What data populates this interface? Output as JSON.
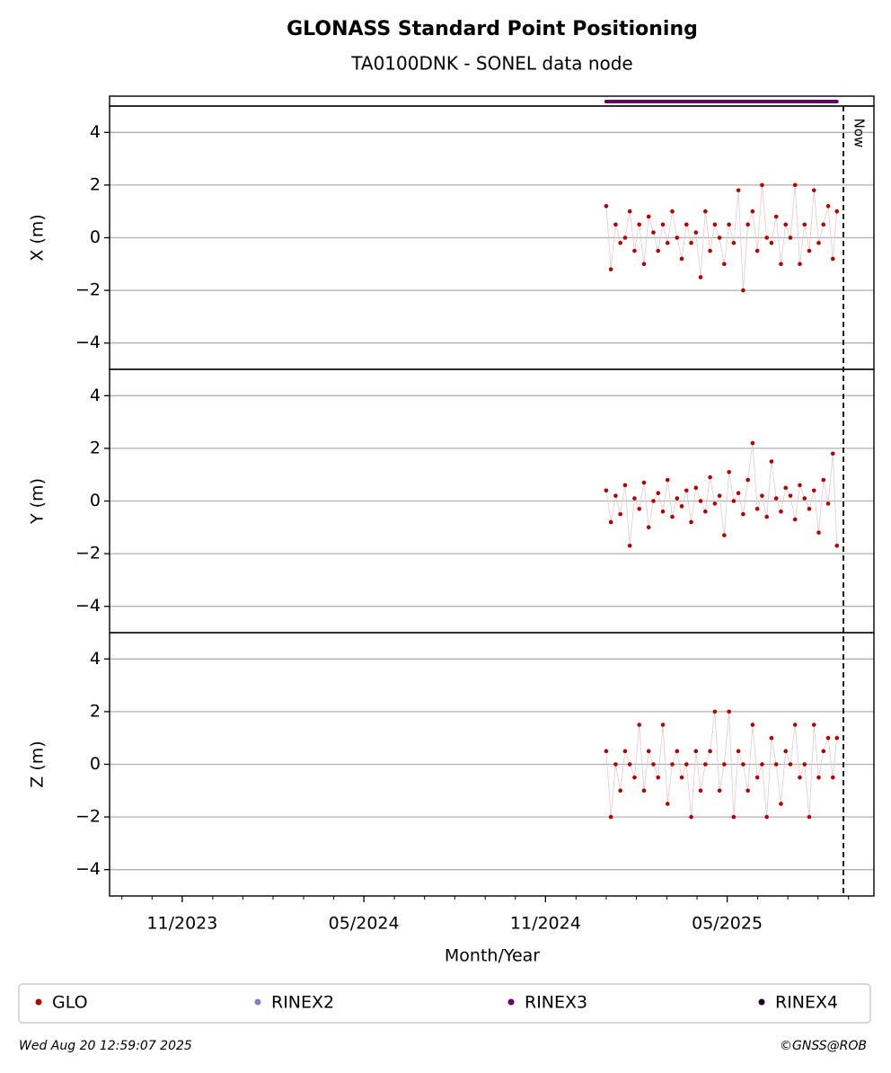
{
  "chart_data": {
    "type": "scatter",
    "title": "GLONASS Standard Point Positioning",
    "subtitle": "TA0100DNK - SONEL data node",
    "xlabel": "Month/Year",
    "xlim": [
      2023.633,
      2025.737
    ],
    "xticks": [
      {
        "value": 2023.833,
        "label": "11/2023"
      },
      {
        "value": 2024.333,
        "label": "05/2024"
      },
      {
        "value": 2024.833,
        "label": "11/2024"
      },
      {
        "value": 2025.333,
        "label": "05/2025"
      }
    ],
    "xminorticks": [
      2023.667,
      2023.75,
      2023.917,
      2024.0,
      2024.083,
      2024.167,
      2024.25,
      2024.417,
      2024.5,
      2024.583,
      2024.667,
      2024.75,
      2024.917,
      2025.0,
      2025.083,
      2025.167,
      2025.25,
      2025.417,
      2025.5,
      2025.583,
      2025.667
    ],
    "now": {
      "value": 2025.653,
      "label": "Now"
    },
    "grid": true,
    "x": [
      2025.0,
      2025.013,
      2025.026,
      2025.039,
      2025.052,
      2025.065,
      2025.078,
      2025.091,
      2025.104,
      2025.117,
      2025.13,
      2025.143,
      2025.156,
      2025.169,
      2025.182,
      2025.195,
      2025.208,
      2025.221,
      2025.234,
      2025.247,
      2025.26,
      2025.273,
      2025.286,
      2025.299,
      2025.312,
      2025.325,
      2025.338,
      2025.351,
      2025.364,
      2025.377,
      2025.39,
      2025.403,
      2025.416,
      2025.429,
      2025.442,
      2025.455,
      2025.468,
      2025.481,
      2025.494,
      2025.507,
      2025.52,
      2025.533,
      2025.546,
      2025.559,
      2025.572,
      2025.585,
      2025.598,
      2025.611,
      2025.624,
      2025.635
    ],
    "panels": [
      {
        "ylabel": "X (m)",
        "ylim": [
          -5,
          5
        ],
        "yticks": [
          {
            "value": -4,
            "label": "−4"
          },
          {
            "value": -2,
            "label": "−2"
          },
          0,
          2,
          4
        ],
        "values": [
          1.2,
          -1.2,
          0.5,
          -0.2,
          0,
          1,
          -0.5,
          0.5,
          -1.0,
          0.8,
          0.2,
          -0.5,
          0.5,
          -0.2,
          1,
          0,
          -0.8,
          0.5,
          -0.2,
          0.2,
          -1.5,
          1,
          -0.5,
          0.5,
          0,
          -1,
          0.5,
          -0.2,
          1.8,
          -2,
          0.5,
          1,
          -0.5,
          2,
          0,
          -0.2,
          0.8,
          -1,
          0.5,
          0,
          2,
          -1,
          0.5,
          -0.5,
          1.8,
          -0.2,
          0.5,
          1.2,
          -0.8,
          1
        ]
      },
      {
        "ylabel": "Y (m)",
        "ylim": [
          -5,
          5
        ],
        "yticks": [
          {
            "value": -4,
            "label": "−4"
          },
          {
            "value": -2,
            "label": "−2"
          },
          0,
          2,
          4
        ],
        "values": [
          0.4,
          -0.8,
          0.2,
          -0.5,
          0.6,
          -1.7,
          0.1,
          -0.3,
          0.7,
          -1.0,
          0,
          0.3,
          -0.4,
          0.8,
          -0.6,
          0.1,
          -0.2,
          0.4,
          -0.8,
          0.5,
          0,
          -0.4,
          0.9,
          -0.1,
          0.2,
          -1.3,
          1.1,
          0,
          0.3,
          -0.5,
          0.8,
          2.2,
          -0.3,
          0.2,
          -0.6,
          1.5,
          0.1,
          -0.4,
          0.5,
          0.2,
          -0.7,
          0.6,
          0.1,
          -0.3,
          0.4,
          -1.2,
          0.8,
          -0.1,
          1.8,
          -1.7
        ]
      },
      {
        "ylabel": "Z (m)",
        "ylim": [
          -5,
          5
        ],
        "yticks": [
          {
            "value": -4,
            "label": "−4"
          },
          {
            "value": -2,
            "label": "−2"
          },
          0,
          2,
          4
        ],
        "values": [
          0.5,
          -2,
          0,
          -1,
          0.5,
          0,
          -0.5,
          1.5,
          -1,
          0.5,
          0,
          -0.5,
          1.5,
          -1.5,
          0,
          0.5,
          -0.5,
          0,
          -2,
          0.5,
          -1,
          0,
          0.5,
          2,
          -1,
          0,
          2,
          -2,
          0.5,
          0,
          -1,
          1.5,
          -0.5,
          0,
          -2,
          1,
          0,
          -1.5,
          0.5,
          0,
          1.5,
          -0.5,
          0,
          -2,
          1.5,
          -0.5,
          0.5,
          1,
          -0.5,
          1
        ]
      }
    ],
    "legend_loc": "lower center",
    "legend": [
      {
        "name": "GLO",
        "color": "#b30000"
      },
      {
        "name": "RINEX2",
        "color": "#8080c0"
      },
      {
        "name": "RINEX3",
        "color": "#660066",
        "span": [
          2025.0,
          2025.635
        ]
      },
      {
        "name": "RINEX4",
        "color": "#200020"
      }
    ],
    "footer_left": "Wed Aug 20 12:59:07 2025",
    "footer_right": "©GNSS@ROB"
  }
}
